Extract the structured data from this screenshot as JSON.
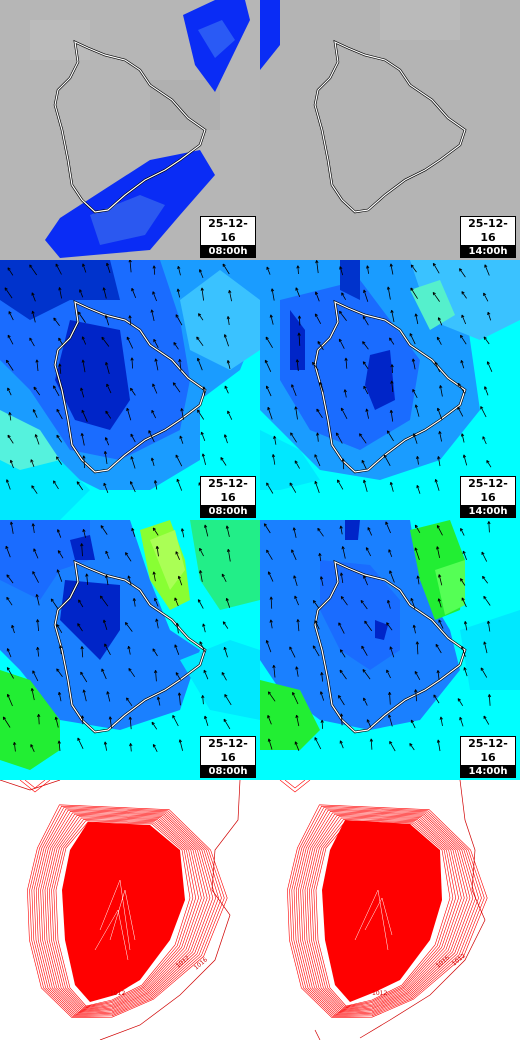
{
  "panels": [
    {
      "date": "25-12-16",
      "time": "08:00h"
    },
    {
      "date": "25-12-16",
      "time": "14:00h"
    },
    {
      "date": "25-12-16",
      "time": "08:00h"
    },
    {
      "date": "25-12-16",
      "time": "14:00h"
    },
    {
      "date": "25-12-16",
      "time": "08:00h"
    },
    {
      "date": "25-12-16",
      "time": "14:00h"
    }
  ],
  "pressure_panels": [
    {
      "labels": [
        "1012",
        "1012",
        "1016"
      ]
    },
    {
      "labels": [
        "1016",
        "1012",
        "1012"
      ]
    }
  ],
  "colors": {
    "precip_bg": "#b4b4b4",
    "precip_blue": "#0a2cf5",
    "sea_cyan": "#00ffff",
    "mid_blue": "#1a80ff",
    "deep_blue": "#0025c8",
    "green": "#22ee33",
    "contour_red": "#ff0000"
  }
}
